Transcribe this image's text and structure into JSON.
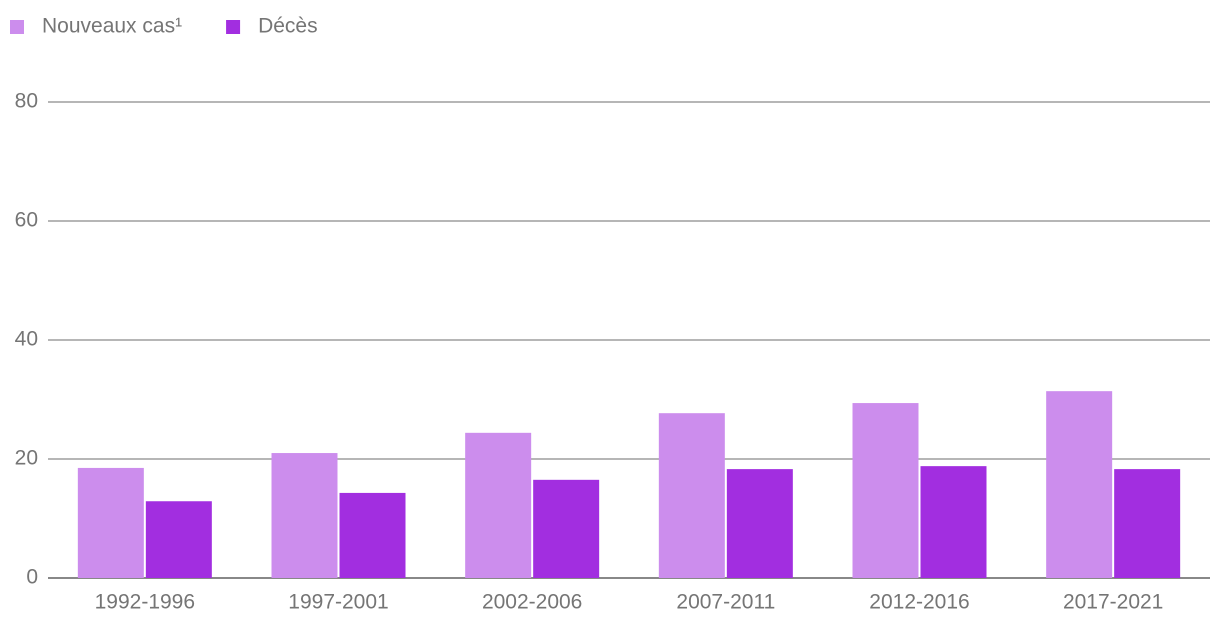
{
  "chart_data": {
    "type": "bar",
    "categories": [
      "1992-1996",
      "1997-2001",
      "2002-2006",
      "2007-2011",
      "2012-2016",
      "2017-2021"
    ],
    "series": [
      {
        "name": "Nouveaux cas¹",
        "color": "#cc8ded",
        "values": [
          18.5,
          21.0,
          24.4,
          27.7,
          29.4,
          31.4
        ]
      },
      {
        "name": "Décès",
        "color": "#a22ee0",
        "values": [
          12.9,
          14.3,
          16.5,
          18.3,
          18.8,
          18.3
        ]
      }
    ],
    "ylim": [
      0,
      80
    ],
    "yticks": [
      0,
      20,
      40,
      60,
      80
    ],
    "grid": true,
    "legend": "top-left"
  }
}
